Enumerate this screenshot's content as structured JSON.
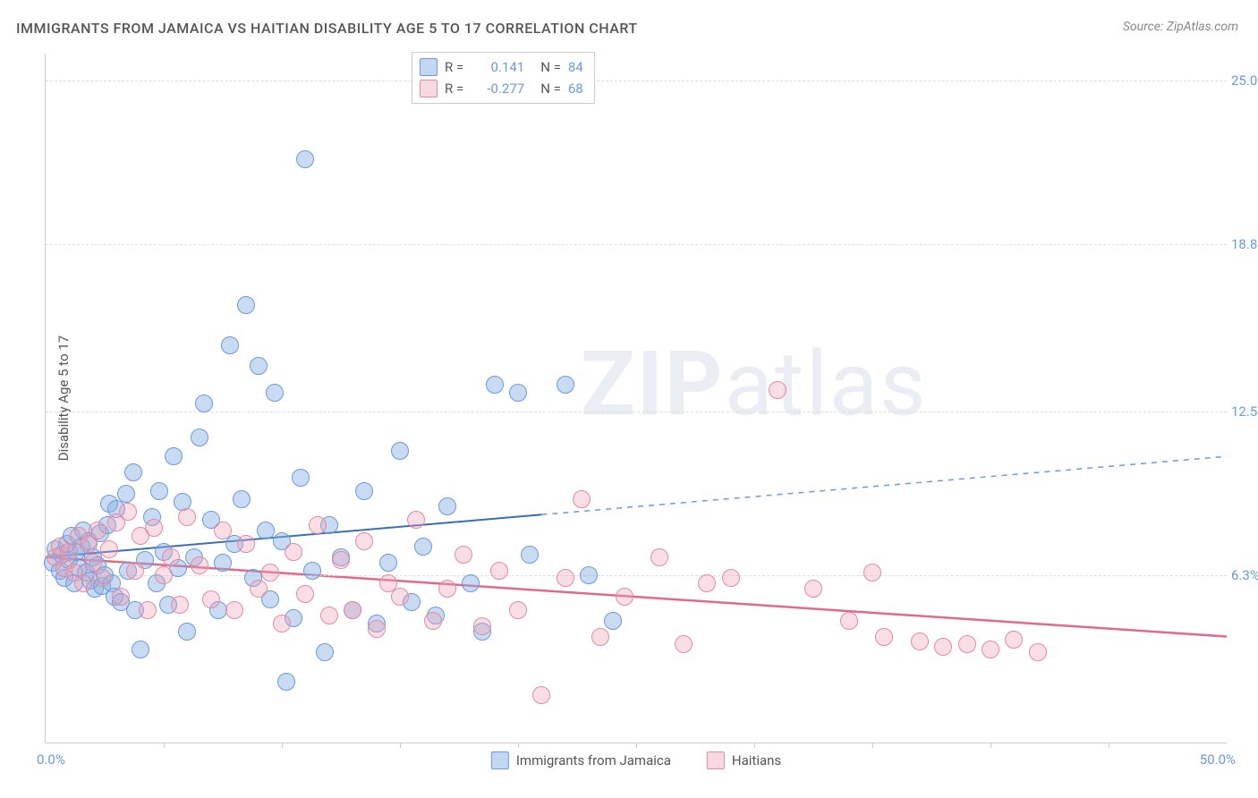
{
  "title": "IMMIGRANTS FROM JAMAICA VS HAITIAN DISABILITY AGE 5 TO 17 CORRELATION CHART",
  "source_label": "Source: ZipAtlas.com",
  "y_axis_label": "Disability Age 5 to 17",
  "x_origin_label": "0.0%",
  "x_max_label": "50.0%",
  "watermark_bold": "ZIP",
  "watermark_rest": "atlas",
  "chart": {
    "type": "scatter",
    "xlim": [
      0,
      50
    ],
    "ylim": [
      0,
      26
    ],
    "y_ticks": [
      {
        "value": 6.3,
        "label": "6.3%"
      },
      {
        "value": 12.5,
        "label": "12.5%"
      },
      {
        "value": 18.8,
        "label": "18.8%"
      },
      {
        "value": 25.0,
        "label": "25.0%"
      }
    ],
    "x_tick_values": [
      5,
      10,
      15,
      20,
      25,
      30,
      35,
      40,
      45
    ],
    "background_color": "#ffffff",
    "grid_color": "#dddddd",
    "axis_color": "#cccccc",
    "axis_label_color": "#6a9ae0",
    "point_radius": 10,
    "series": [
      {
        "id": "s1",
        "label": "Immigrants from Jamaica",
        "color_fill": "rgba(135,176,226,0.45)",
        "color_stroke": "#6a9ae0",
        "R": "0.141",
        "N": "84",
        "trend": {
          "x_start": 0,
          "y_start": 7.0,
          "x_solid_end": 21,
          "y_solid_end": 8.6,
          "x_end": 50,
          "y_end": 10.8,
          "solid_color": "#3a6db8",
          "dash_color": "#6a9ae0",
          "width": 2
        },
        "points": [
          [
            0.3,
            6.8
          ],
          [
            0.4,
            7.3
          ],
          [
            0.6,
            6.5
          ],
          [
            0.7,
            7.1
          ],
          [
            0.8,
            6.2
          ],
          [
            0.9,
            7.5
          ],
          [
            1.0,
            6.9
          ],
          [
            1.1,
            7.8
          ],
          [
            1.2,
            6.0
          ],
          [
            1.3,
            7.2
          ],
          [
            1.4,
            6.6
          ],
          [
            1.5,
            7.4
          ],
          [
            1.6,
            8.0
          ],
          [
            1.7,
            6.4
          ],
          [
            1.8,
            7.6
          ],
          [
            1.9,
            6.1
          ],
          [
            2.0,
            7.0
          ],
          [
            2.1,
            5.8
          ],
          [
            2.2,
            6.7
          ],
          [
            2.3,
            7.9
          ],
          [
            2.4,
            5.9
          ],
          [
            2.5,
            6.3
          ],
          [
            2.6,
            8.2
          ],
          [
            2.7,
            9.0
          ],
          [
            2.8,
            6.0
          ],
          [
            2.9,
            5.5
          ],
          [
            3.0,
            8.8
          ],
          [
            3.2,
            5.3
          ],
          [
            3.4,
            9.4
          ],
          [
            3.5,
            6.5
          ],
          [
            3.7,
            10.2
          ],
          [
            3.8,
            5.0
          ],
          [
            4.0,
            3.5
          ],
          [
            4.2,
            6.9
          ],
          [
            4.5,
            8.5
          ],
          [
            4.7,
            6.0
          ],
          [
            4.8,
            9.5
          ],
          [
            5.0,
            7.2
          ],
          [
            5.2,
            5.2
          ],
          [
            5.4,
            10.8
          ],
          [
            5.6,
            6.6
          ],
          [
            5.8,
            9.1
          ],
          [
            6.0,
            4.2
          ],
          [
            6.3,
            7.0
          ],
          [
            6.5,
            11.5
          ],
          [
            6.7,
            12.8
          ],
          [
            7.0,
            8.4
          ],
          [
            7.3,
            5.0
          ],
          [
            7.5,
            6.8
          ],
          [
            7.8,
            15.0
          ],
          [
            8.0,
            7.5
          ],
          [
            8.3,
            9.2
          ],
          [
            8.5,
            16.5
          ],
          [
            8.8,
            6.2
          ],
          [
            9.0,
            14.2
          ],
          [
            9.3,
            8.0
          ],
          [
            9.5,
            5.4
          ],
          [
            9.7,
            13.2
          ],
          [
            10.0,
            7.6
          ],
          [
            10.2,
            2.3
          ],
          [
            10.5,
            4.7
          ],
          [
            10.8,
            10.0
          ],
          [
            11.0,
            22.0
          ],
          [
            11.3,
            6.5
          ],
          [
            11.8,
            3.4
          ],
          [
            12.0,
            8.2
          ],
          [
            12.5,
            7.0
          ],
          [
            13.0,
            5.0
          ],
          [
            13.5,
            9.5
          ],
          [
            14.0,
            4.5
          ],
          [
            14.5,
            6.8
          ],
          [
            15.0,
            11.0
          ],
          [
            15.5,
            5.3
          ],
          [
            16.0,
            7.4
          ],
          [
            16.5,
            4.8
          ],
          [
            17.0,
            8.9
          ],
          [
            18.0,
            6.0
          ],
          [
            18.5,
            4.2
          ],
          [
            19.0,
            13.5
          ],
          [
            20.0,
            13.2
          ],
          [
            20.5,
            7.1
          ],
          [
            22.0,
            13.5
          ],
          [
            23.0,
            6.3
          ],
          [
            24.0,
            4.6
          ]
        ]
      },
      {
        "id": "s2",
        "label": "Haitians",
        "color_fill": "rgba(240,160,180,0.35)",
        "color_stroke": "#e48aa2",
        "R": "-0.277",
        "N": "68",
        "trend": {
          "x_start": 0,
          "y_start": 7.0,
          "x_solid_end": 50,
          "y_solid_end": 4.0,
          "x_end": 50,
          "y_end": 4.0,
          "solid_color": "#e06a8a",
          "dash_color": "#e48aa2",
          "width": 2.5
        },
        "points": [
          [
            0.4,
            7.0
          ],
          [
            0.6,
            7.4
          ],
          [
            0.8,
            6.6
          ],
          [
            1.0,
            7.2
          ],
          [
            1.2,
            6.4
          ],
          [
            1.4,
            7.8
          ],
          [
            1.6,
            6.0
          ],
          [
            1.8,
            7.5
          ],
          [
            2.0,
            6.8
          ],
          [
            2.2,
            8.0
          ],
          [
            2.4,
            6.2
          ],
          [
            2.7,
            7.3
          ],
          [
            3.0,
            8.3
          ],
          [
            3.2,
            5.5
          ],
          [
            3.5,
            8.7
          ],
          [
            3.8,
            6.5
          ],
          [
            4.0,
            7.8
          ],
          [
            4.3,
            5.0
          ],
          [
            4.6,
            8.1
          ],
          [
            5.0,
            6.3
          ],
          [
            5.3,
            7.0
          ],
          [
            5.7,
            5.2
          ],
          [
            6.0,
            8.5
          ],
          [
            6.5,
            6.7
          ],
          [
            7.0,
            5.4
          ],
          [
            7.5,
            8.0
          ],
          [
            8.0,
            5.0
          ],
          [
            8.5,
            7.5
          ],
          [
            9.0,
            5.8
          ],
          [
            9.5,
            6.4
          ],
          [
            10.0,
            4.5
          ],
          [
            10.5,
            7.2
          ],
          [
            11.0,
            5.6
          ],
          [
            11.5,
            8.2
          ],
          [
            12.0,
            4.8
          ],
          [
            12.5,
            6.9
          ],
          [
            13.0,
            5.0
          ],
          [
            13.5,
            7.6
          ],
          [
            14.0,
            4.3
          ],
          [
            14.5,
            6.0
          ],
          [
            15.0,
            5.5
          ],
          [
            15.7,
            8.4
          ],
          [
            16.4,
            4.6
          ],
          [
            17.0,
            5.8
          ],
          [
            17.7,
            7.1
          ],
          [
            18.5,
            4.4
          ],
          [
            19.2,
            6.5
          ],
          [
            20.0,
            5.0
          ],
          [
            21.0,
            1.8
          ],
          [
            22.0,
            6.2
          ],
          [
            22.7,
            9.2
          ],
          [
            23.5,
            4.0
          ],
          [
            24.5,
            5.5
          ],
          [
            26.0,
            7.0
          ],
          [
            27.0,
            3.7
          ],
          [
            28.0,
            6.0
          ],
          [
            29.0,
            6.2
          ],
          [
            31.0,
            13.3
          ],
          [
            32.5,
            5.8
          ],
          [
            34.0,
            4.6
          ],
          [
            35.5,
            4.0
          ],
          [
            37.0,
            3.8
          ],
          [
            38.0,
            3.6
          ],
          [
            39.0,
            3.7
          ],
          [
            40.0,
            3.5
          ],
          [
            41.0,
            3.9
          ],
          [
            42.0,
            3.4
          ],
          [
            35.0,
            6.4
          ]
        ]
      }
    ]
  },
  "legend_top": {
    "r_label": "R =",
    "n_label": "N ="
  }
}
